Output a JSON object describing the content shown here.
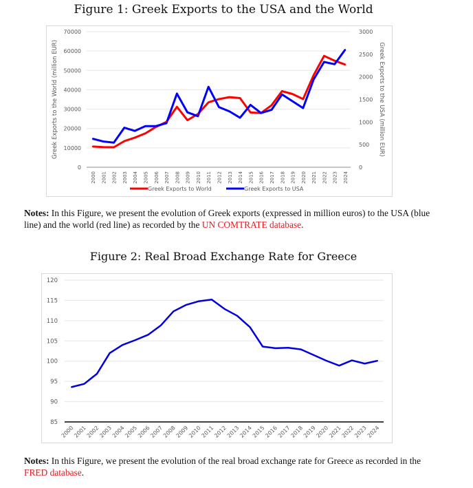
{
  "figure1": {
    "title": "Figure 1: Greek Exports to the USA and the World",
    "notes_label": "Notes:",
    "notes_text": " In this Figure, we present the evolution of Greek exports (expressed in million euros) to the USA (blue line) and the world (red line) as recorded by the ",
    "notes_link": "UN COMTRATE database",
    "notes_end": "."
  },
  "figure2": {
    "title": "Figure 2: Real Broad Exchange Rate for Greece",
    "notes_label": "Notes:",
    "notes_text": " In this Figure, we present the evolution of the real broad exchange rate for Greece as recorded in the ",
    "notes_link": "FRED database",
    "notes_end": "."
  },
  "colors": {
    "world": "#ff0000",
    "usa": "#0000ff",
    "rate": "#0000e0",
    "grid": "#e6e6e6",
    "link": "#e8161d"
  },
  "chart_data": [
    {
      "type": "line",
      "title": "Greek Exports to the USA and the World",
      "x": [
        "2000",
        "2001",
        "2002",
        "2003",
        "2004",
        "2005",
        "2006",
        "2007",
        "2008",
        "2009",
        "2010",
        "2011",
        "2012",
        "2013",
        "2014",
        "2015",
        "2016",
        "2017",
        "2018",
        "2019",
        "2020",
        "2021",
        "2022",
        "2023",
        "2024"
      ],
      "series": [
        {
          "name": "Greek Exports to World",
          "axis": "left",
          "values": [
            10700,
            10400,
            10300,
            13500,
            15300,
            17500,
            20800,
            23400,
            31200,
            24300,
            27500,
            33500,
            35200,
            36200,
            35700,
            28300,
            28000,
            32000,
            39300,
            37800,
            35200,
            47500,
            57500,
            55000,
            53000
          ]
        },
        {
          "name": "Greek Exports to  USA",
          "axis": "right",
          "values": [
            630,
            570,
            545,
            875,
            805,
            910,
            910,
            975,
            1630,
            1215,
            1130,
            1780,
            1330,
            1235,
            1095,
            1380,
            1200,
            1270,
            1610,
            1460,
            1310,
            1940,
            2330,
            2280,
            2600
          ]
        }
      ],
      "ylabel": "Greek Exports to the World (million EUR)",
      "y2label": "Greek Exports to the USA (million EUR)",
      "ylim": [
        0,
        70000
      ],
      "y2lim": [
        0,
        3000
      ],
      "yticks": [
        "0",
        "10000",
        "20000",
        "30000",
        "40000",
        "50000",
        "60000",
        "70000"
      ],
      "y2ticks": [
        "0",
        "500",
        "1000",
        "1500",
        "2000",
        "2500",
        "3000"
      ],
      "grid": true,
      "legend": "bottom"
    },
    {
      "type": "line",
      "title": "Real Broad Exchange Rate for Greece",
      "x": [
        "2000",
        "2001",
        "2002",
        "2003",
        "2004",
        "2005",
        "2006",
        "2007",
        "2008",
        "2009",
        "2010",
        "2011",
        "2012",
        "2013",
        "2014",
        "2015",
        "2016",
        "2017",
        "2018",
        "2019",
        "2020",
        "2021",
        "2022",
        "2023",
        "2024"
      ],
      "series": [
        {
          "name": "Real Broad Exchange Rate",
          "values": [
            93.6,
            94.4,
            96.9,
            102.0,
            104.0,
            105.2,
            106.5,
            108.8,
            112.3,
            113.9,
            114.8,
            115.2,
            112.9,
            111.2,
            108.4,
            103.6,
            103.2,
            103.3,
            102.9,
            101.5,
            100.1,
            98.9,
            100.2,
            99.4,
            100.1
          ]
        }
      ],
      "xlabel": "",
      "ylabel": "",
      "ylim": [
        85,
        120
      ],
      "yticks": [
        "85",
        "90",
        "95",
        "100",
        "105",
        "110",
        "115",
        "120"
      ],
      "grid": true,
      "legend": "none"
    }
  ]
}
